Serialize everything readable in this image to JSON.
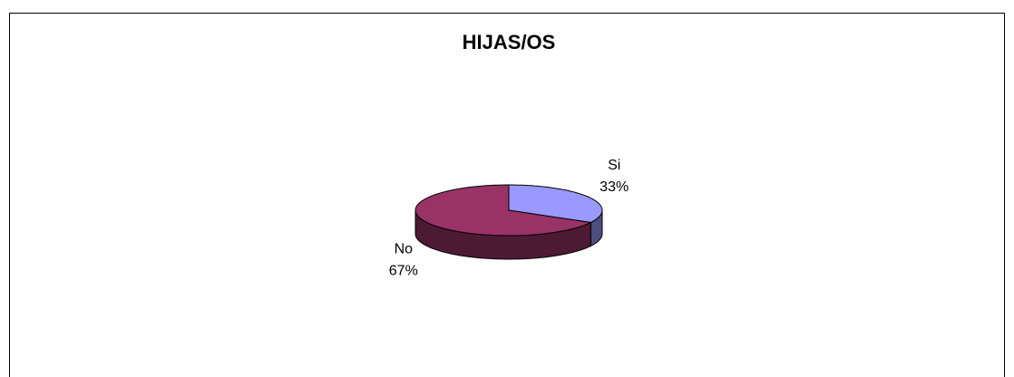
{
  "chart_data": {
    "type": "pie",
    "title": "HIJAS/OS",
    "categories": [
      "Si",
      "No"
    ],
    "values": [
      33,
      67
    ],
    "value_labels": [
      "33%",
      "67%"
    ],
    "colors": [
      "#9999ff",
      "#993366"
    ],
    "side_colors": [
      "#4d4d80",
      "#4d1a33"
    ]
  }
}
